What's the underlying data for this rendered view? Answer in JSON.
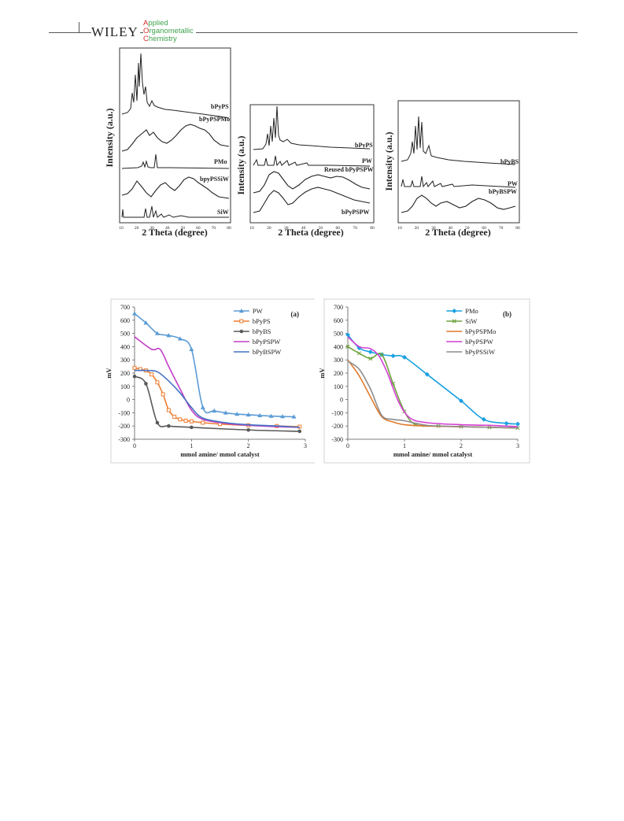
{
  "header": {
    "publisher": "WILEY",
    "journal_lines": [
      {
        "first": "A",
        "rest": "pplied"
      },
      {
        "first": "O",
        "rest": "rganometallic"
      },
      {
        "first": "C",
        "rest": "hemistry"
      }
    ],
    "colors": {
      "journal": "#3fa34d",
      "journal_caps": "#d0312d"
    }
  },
  "xrd_panels": [
    {
      "xlabel": "2 Theta (degree)",
      "ylabel": "Intensity (a.u.)",
      "xticks": [
        "10",
        "20",
        "30",
        "40",
        "50",
        "60",
        "70",
        "80"
      ],
      "traces": [
        "bPyPS",
        "bPyPSPMo",
        "PMo",
        "bpyPSSiW",
        "SiW"
      ]
    },
    {
      "xlabel": "2 Theta (degree)",
      "ylabel": "Intensity (a.u.)",
      "xticks": [
        "10",
        "20",
        "30",
        "40",
        "50",
        "60",
        "70",
        "80"
      ],
      "traces": [
        "bPyPS",
        "PW",
        "Reused bPyPSPW",
        "bPyPSPW"
      ]
    },
    {
      "xlabel": "2 Theta (degree)",
      "ylabel": "Intensity (a.u.)",
      "xticks": [
        "10",
        "20",
        "30",
        "40",
        "50",
        "60",
        "70",
        "80"
      ],
      "traces": [
        "bPyBS",
        "PW",
        "bPyBSPW"
      ]
    }
  ],
  "chart_data": [
    {
      "type": "line",
      "panel_label": "(a)",
      "xlabel": "mmol amine/ mmol catalyst",
      "ylabel": "mV",
      "xlim": [
        0,
        3
      ],
      "ylim": [
        -300,
        700
      ],
      "xticks": [
        0,
        1,
        2,
        3
      ],
      "yticks": [
        -300,
        -200,
        -100,
        0,
        100,
        200,
        300,
        400,
        500,
        600,
        700
      ],
      "legend_position": "top-right",
      "series": [
        {
          "name": "PW",
          "color": "#5b9bd5",
          "marker": "triangle",
          "x": [
            0,
            0.2,
            0.4,
            0.6,
            0.8,
            1.0,
            1.2,
            1.4,
            1.6,
            1.8,
            2.0,
            2.2,
            2.4,
            2.6,
            2.8
          ],
          "y": [
            650,
            580,
            500,
            485,
            460,
            380,
            -60,
            -85,
            -100,
            -110,
            -115,
            -120,
            -125,
            -128,
            -130
          ]
        },
        {
          "name": "bPyPS",
          "color": "#ed7d31",
          "marker": "square",
          "x": [
            0,
            0.1,
            0.2,
            0.3,
            0.4,
            0.5,
            0.6,
            0.7,
            0.8,
            0.9,
            1.0,
            1.2,
            1.5,
            2.0,
            2.5,
            2.9
          ],
          "y": [
            240,
            230,
            220,
            190,
            130,
            40,
            -80,
            -130,
            -150,
            -160,
            -165,
            -175,
            -185,
            -195,
            -200,
            -205
          ]
        },
        {
          "name": "bPyBS",
          "color": "#595959",
          "marker": "circle",
          "x": [
            0,
            0.2,
            0.4,
            0.6,
            1.0,
            2.0,
            2.9
          ],
          "y": [
            175,
            120,
            -175,
            -200,
            -210,
            -230,
            -240
          ]
        },
        {
          "name": "bPyPSPW",
          "color": "#c43fc7",
          "marker": "none",
          "x": [
            0,
            0.3,
            0.45,
            0.6,
            0.8,
            1.0,
            1.2,
            1.6,
            2.0,
            2.5,
            2.9
          ],
          "y": [
            475,
            380,
            380,
            250,
            80,
            -80,
            -150,
            -180,
            -195,
            -205,
            -210
          ]
        },
        {
          "name": "bPyBSPW",
          "color": "#4472c4",
          "marker": "none",
          "x": [
            0,
            0.2,
            0.4,
            0.6,
            0.8,
            1.0,
            1.2,
            1.6,
            2.0,
            2.5,
            2.9
          ],
          "y": [
            220,
            220,
            210,
            140,
            50,
            -60,
            -140,
            -175,
            -190,
            -200,
            -210
          ]
        }
      ]
    },
    {
      "type": "line",
      "panel_label": "(b)",
      "xlabel": "mmol amine/ mmol catalyst",
      "ylabel": "mV",
      "xlim": [
        0,
        3
      ],
      "ylim": [
        -300,
        700
      ],
      "xticks": [
        0,
        1,
        2,
        3
      ],
      "yticks": [
        -300,
        -200,
        -100,
        0,
        100,
        200,
        300,
        400,
        500,
        600,
        700
      ],
      "legend_position": "top-right",
      "series": [
        {
          "name": "PMo",
          "color": "#1ba1e2",
          "marker": "diamond",
          "x": [
            0,
            0.2,
            0.4,
            0.6,
            0.8,
            1.0,
            1.4,
            2.0,
            2.4,
            2.8,
            3.0
          ],
          "y": [
            490,
            390,
            360,
            340,
            330,
            320,
            190,
            -10,
            -150,
            -180,
            -185
          ]
        },
        {
          "name": "SiW",
          "color": "#70a33f",
          "marker": "x",
          "x": [
            0,
            0.2,
            0.4,
            0.6,
            0.8,
            1.0,
            1.2,
            1.6,
            2.0,
            2.5,
            3.0
          ],
          "y": [
            400,
            350,
            310,
            340,
            120,
            -90,
            -190,
            -200,
            -205,
            -210,
            -215
          ]
        },
        {
          "name": "bPyPSPMo",
          "color": "#e07a2c",
          "marker": "none",
          "x": [
            0,
            0.2,
            0.4,
            0.6,
            0.8,
            1.0,
            1.4,
            2.0,
            2.5,
            3.0
          ],
          "y": [
            300,
            180,
            20,
            -130,
            -170,
            -190,
            -200,
            -205,
            -210,
            -215
          ]
        },
        {
          "name": "bPyPSPW",
          "color": "#d33fd3",
          "marker": "none",
          "x": [
            0,
            0.2,
            0.4,
            0.55,
            0.7,
            0.9,
            1.1,
            1.4,
            2.0,
            2.5,
            3.0
          ],
          "y": [
            475,
            400,
            385,
            330,
            200,
            -20,
            -140,
            -175,
            -190,
            -195,
            -205
          ]
        },
        {
          "name": "bPyPSSiW",
          "color": "#8c8c8c",
          "marker": "none",
          "x": [
            0,
            0.2,
            0.4,
            0.6,
            0.8,
            1.0,
            1.4,
            2.0,
            2.5,
            3.0
          ],
          "y": [
            290,
            230,
            80,
            -120,
            -150,
            -160,
            -195,
            -205,
            -210,
            -215
          ]
        }
      ]
    }
  ]
}
